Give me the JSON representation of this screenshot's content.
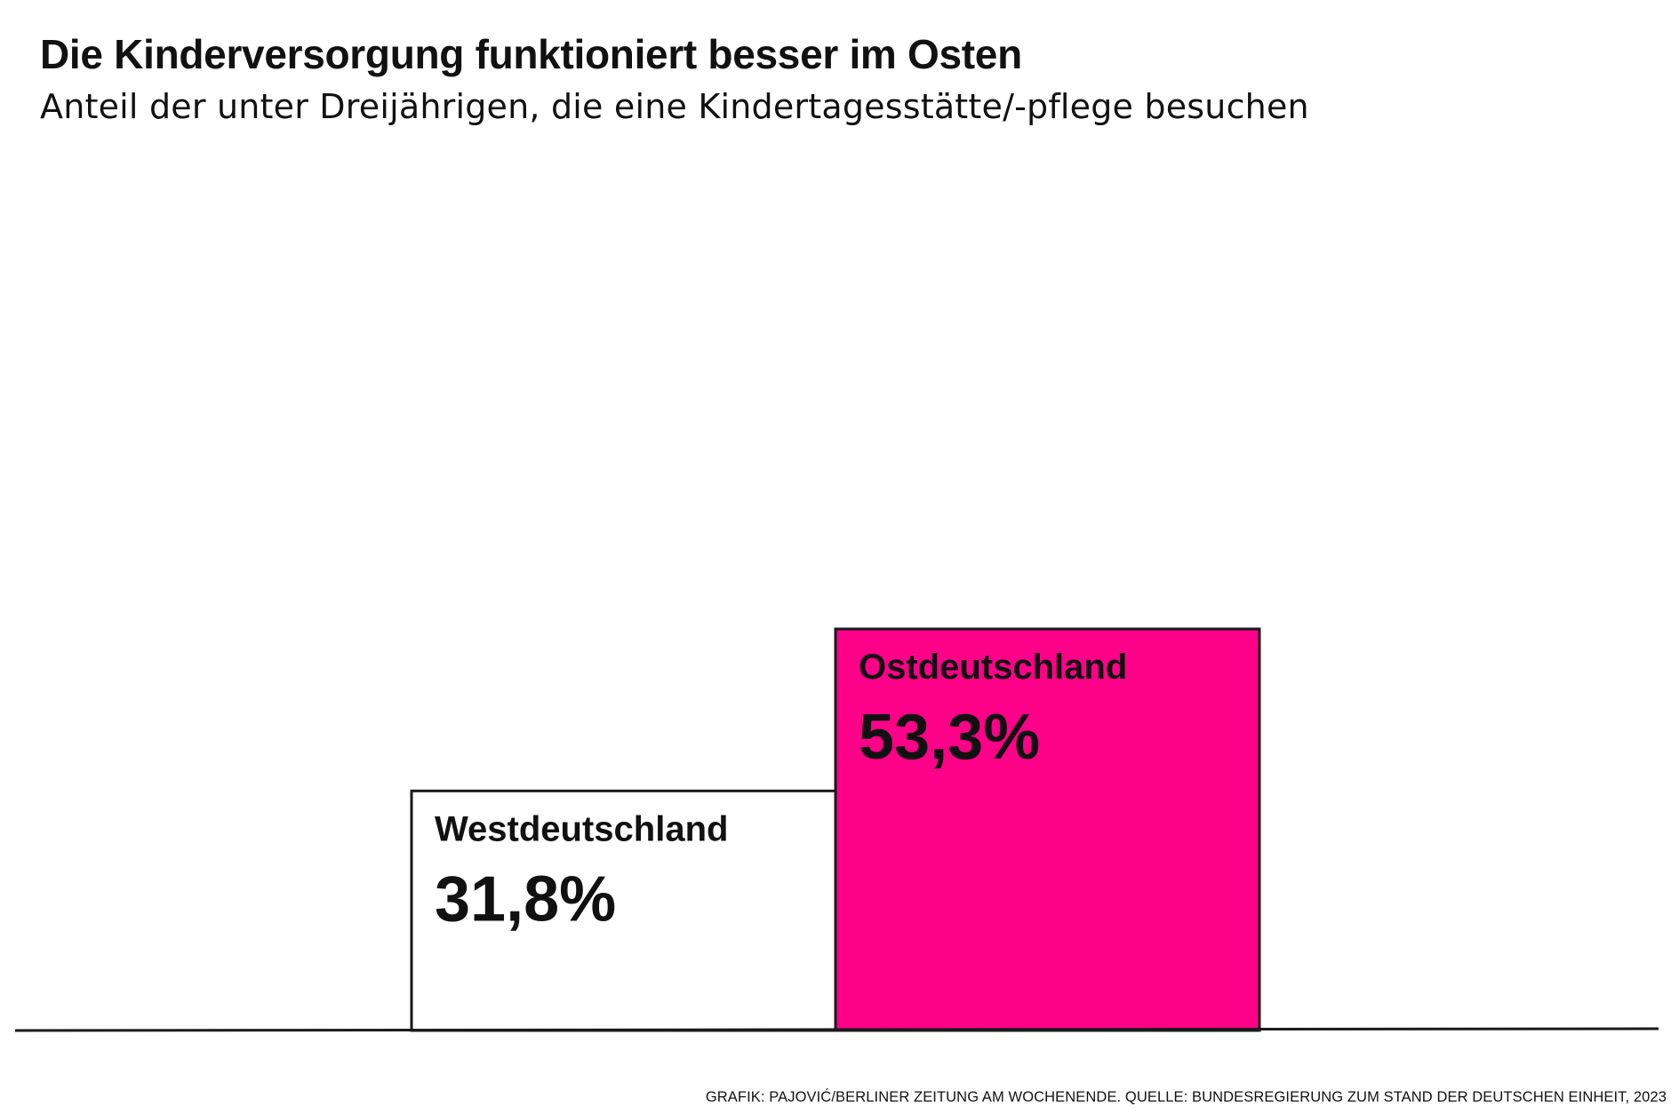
{
  "chart_data": {
    "type": "bar",
    "title": "Die Kinderversorgung funktioniert besser im Osten",
    "subtitle": "Anteil der unter Dreijährigen, die eine Kindertagesstätte/-pflege besuchen",
    "categories": [
      "Westdeutschland",
      "Ostdeutschland"
    ],
    "values": [
      31.8,
      53.3
    ],
    "value_labels": [
      "31,8%",
      "53,3%"
    ],
    "bar_colors": [
      "#ffffff",
      "#ff0088"
    ],
    "outline_color": "#1a1a1a",
    "ylim": [
      0,
      53.3
    ],
    "grid": false,
    "legend": "none",
    "xlabel": "",
    "ylabel": ""
  },
  "source": "GRAFIK: PAJOVIĆ/BERLINER ZEITUNG AM WOCHENENDE. QUELLE: BUNDESREGIERUNG ZUM STAND DER DEUTSCHEN EINHEIT, 2023"
}
